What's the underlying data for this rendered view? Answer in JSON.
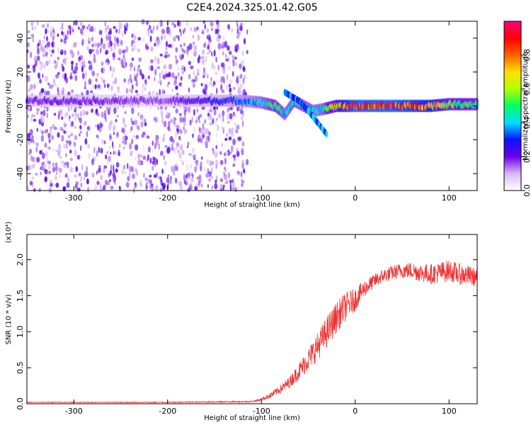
{
  "title": "C2E4.2024.325.01.42.G05",
  "chart_data": [
    {
      "type": "heatmap",
      "xlabel": "Height of straight line (km)",
      "ylabel": "Frequency (Hz)",
      "xlim": [
        -350,
        130
      ],
      "ylim": [
        -50,
        50
      ],
      "xticks": [
        -300,
        -200,
        -100,
        0,
        100
      ],
      "yticks": [
        -40,
        -20,
        0,
        20,
        40
      ],
      "colorbar": {
        "label": "Normalized spectral amplitude",
        "range": [
          0,
          1
        ],
        "ticks": [
          0.0,
          0.2,
          0.4,
          0.6,
          0.8
        ],
        "colormap": [
          "#ffffff",
          "#d9b8f5",
          "#6b00e8",
          "#1010ff",
          "#00e0ff",
          "#00ff60",
          "#b0ff00",
          "#ffe000",
          "#ff6000",
          "#ff0000",
          "#ff0080"
        ]
      },
      "ridge": [
        {
          "x": -350,
          "y": 3,
          "amp": 0.22
        },
        {
          "x": -300,
          "y": 3,
          "amp": 0.22
        },
        {
          "x": -250,
          "y": 3,
          "amp": 0.2
        },
        {
          "x": -200,
          "y": 3,
          "amp": 0.18
        },
        {
          "x": -180,
          "y": 3,
          "amp": 0.25
        },
        {
          "x": -150,
          "y": 3,
          "amp": 0.3
        },
        {
          "x": -120,
          "y": 3,
          "amp": 0.35
        },
        {
          "x": -100,
          "y": 2,
          "amp": 0.45
        },
        {
          "x": -85,
          "y": 0,
          "amp": 0.55
        },
        {
          "x": -75,
          "y": -5,
          "amp": 0.45
        },
        {
          "x": -65,
          "y": 3,
          "amp": 0.5
        },
        {
          "x": -55,
          "y": 0,
          "amp": 0.5
        },
        {
          "x": -45,
          "y": -3,
          "amp": 0.45
        },
        {
          "x": -35,
          "y": -2,
          "amp": 0.45
        },
        {
          "x": -20,
          "y": 0,
          "amp": 0.8
        },
        {
          "x": 0,
          "y": 0,
          "amp": 0.95
        },
        {
          "x": 40,
          "y": 0,
          "amp": 0.95
        },
        {
          "x": 80,
          "y": 0,
          "amp": 0.85
        },
        {
          "x": 100,
          "y": 1,
          "amp": 0.6
        },
        {
          "x": 130,
          "y": 1,
          "amp": 0.55
        }
      ],
      "branch": [
        {
          "x": -75,
          "y": 8
        },
        {
          "x": -60,
          "y": 3
        },
        {
          "x": -50,
          "y": -3
        },
        {
          "x": -40,
          "y": -10
        },
        {
          "x": -30,
          "y": -17
        }
      ],
      "noise_region": {
        "x_end": -115,
        "y_extent": 50
      }
    },
    {
      "type": "line",
      "xlabel": "Height of straight line (km)",
      "ylabel": "SNR (10 * v/v)",
      "y_multiplier": "(x10⁴)",
      "xlim": [
        -350,
        130
      ],
      "ylim": [
        0,
        2.35
      ],
      "xticks": [
        -300,
        -200,
        -100,
        0,
        100
      ],
      "yticks": [
        0.0,
        0.5,
        1.0,
        1.5,
        2.0
      ],
      "color": "#ee3333",
      "x": [
        -350,
        -200,
        -110,
        -100,
        -90,
        -80,
        -70,
        -60,
        -50,
        -40,
        -30,
        -20,
        -10,
        0,
        10,
        20,
        30,
        40,
        50,
        60,
        70,
        80,
        90,
        100,
        110,
        120,
        130
      ],
      "values": [
        0.02,
        0.02,
        0.03,
        0.06,
        0.12,
        0.2,
        0.3,
        0.45,
        0.62,
        0.8,
        1.0,
        1.2,
        1.35,
        1.45,
        1.6,
        1.7,
        1.78,
        1.82,
        1.85,
        1.85,
        1.82,
        1.8,
        1.82,
        1.85,
        1.8,
        1.78,
        1.75
      ],
      "noise_amplitude": [
        0.005,
        0.006,
        0.01,
        0.02,
        0.04,
        0.06,
        0.08,
        0.12,
        0.16,
        0.2,
        0.22,
        0.22,
        0.2,
        0.16,
        0.12,
        0.1,
        0.1,
        0.1,
        0.11,
        0.12,
        0.13,
        0.14,
        0.15,
        0.15,
        0.15,
        0.14,
        0.13
      ]
    }
  ]
}
